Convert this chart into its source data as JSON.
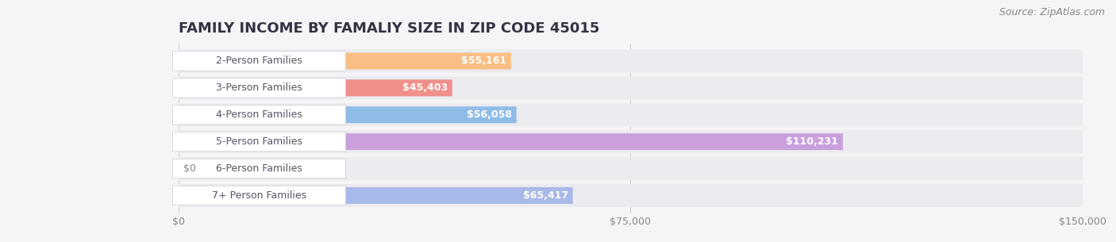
{
  "title": "FAMILY INCOME BY FAMALIY SIZE IN ZIP CODE 45015",
  "source": "Source: ZipAtlas.com",
  "categories": [
    "2-Person Families",
    "3-Person Families",
    "4-Person Families",
    "5-Person Families",
    "6-Person Families",
    "7+ Person Families"
  ],
  "values": [
    55161,
    45403,
    56058,
    110231,
    0,
    65417
  ],
  "bar_colors": [
    "#f9be84",
    "#f0908a",
    "#90bce8",
    "#c9a0dc",
    "#6dcab8",
    "#a8b8e8"
  ],
  "bar_bg_color": "#ebebf0",
  "xlim": [
    0,
    150000
  ],
  "xticks": [
    0,
    75000,
    150000
  ],
  "xtick_labels": [
    "$0",
    "$75,000",
    "$150,000"
  ],
  "value_labels": [
    "$55,161",
    "$45,403",
    "$56,058",
    "$110,231",
    "$0",
    "$65,417"
  ],
  "title_fontsize": 13,
  "label_fontsize": 9,
  "tick_fontsize": 9,
  "source_fontsize": 9,
  "bg_color": "#f5f5f8",
  "bar_row_bg": "#ebebf0",
  "value_color_inside": "#ffffff",
  "value_color_outside": "#888888"
}
